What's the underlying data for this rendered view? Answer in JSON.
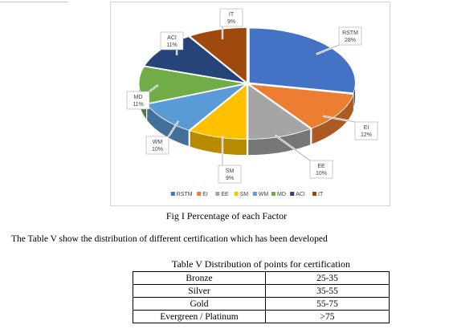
{
  "chart_data": {
    "type": "pie",
    "title": "",
    "categories": [
      "RSTM",
      "EI",
      "EE",
      "SM",
      "WM",
      "MD",
      "ACI",
      "IT"
    ],
    "values": [
      28,
      12,
      10,
      9,
      10,
      11,
      11,
      9
    ],
    "value_labels": [
      "28%",
      "12%",
      "10%",
      "9%",
      "10%",
      "11%",
      "11%",
      "9%"
    ],
    "colors": [
      "#4472C4",
      "#ED7D31",
      "#A5A5A5",
      "#FFC000",
      "#5B9BD5",
      "#70AD47",
      "#264478",
      "#9E480E"
    ],
    "legend_position": "bottom",
    "style": "3d-exploded"
  },
  "figure": {
    "caption": "Fig I Percentage of each Factor"
  },
  "paragraph": {
    "text": "The Table V show the distribution of different certification which has been developed"
  },
  "table": {
    "title": "Table V Distribution of points for certification",
    "rows": [
      [
        "Bronze",
        "25-35"
      ],
      [
        "Silver",
        "35-55"
      ],
      [
        "Gold",
        "55-75"
      ],
      [
        "Evergreen / Platinum",
        ">75"
      ]
    ]
  }
}
